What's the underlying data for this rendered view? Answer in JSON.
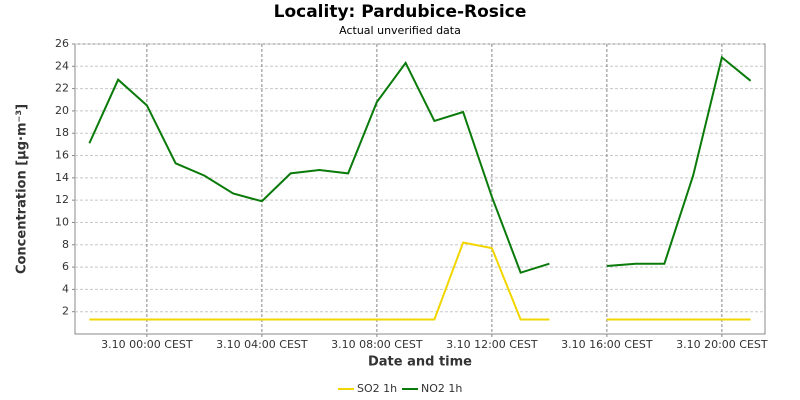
{
  "chart_data": {
    "type": "line",
    "title": "Locality: Pardubice-Rosice",
    "subtitle": "Actual unverified data",
    "x_label": "Date and time",
    "y_label": "Concentration [µg·m⁻³]",
    "categories": [
      null,
      null,
      "3.10 00:00 CEST",
      null,
      null,
      null,
      "3.10 04:00 CEST",
      null,
      null,
      null,
      "3.10 08:00 CEST",
      null,
      null,
      null,
      "3.10 12:00 CEST",
      null,
      null,
      null,
      "3.10 16:00 CEST",
      null,
      null,
      null,
      "3.10 20:00 CEST",
      null
    ],
    "series": [
      {
        "name": "SO2 1h",
        "color": "#f2d600",
        "values": [
          1.3,
          1.3,
          1.3,
          1.3,
          1.3,
          1.3,
          1.3,
          1.3,
          1.3,
          1.3,
          1.3,
          1.3,
          1.3,
          8.2,
          7.7,
          1.3,
          1.3,
          null,
          1.3,
          1.3,
          1.3,
          1.3,
          1.3,
          1.3
        ]
      },
      {
        "name": "NO2 1h",
        "color": "#0a7a0a",
        "values": [
          17.1,
          22.8,
          20.5,
          15.3,
          14.2,
          12.6,
          11.9,
          14.4,
          14.7,
          14.4,
          20.8,
          24.3,
          19.1,
          19.9,
          12.3,
          5.5,
          6.3,
          null,
          6.1,
          6.3,
          6.3,
          14.2,
          24.8,
          22.7
        ]
      }
    ],
    "ylim": [
      0,
      26
    ],
    "yticks": [
      2,
      4,
      6,
      8,
      10,
      12,
      14,
      16,
      18,
      20,
      22,
      24,
      26
    ],
    "grid": true,
    "legend": "bottom"
  }
}
